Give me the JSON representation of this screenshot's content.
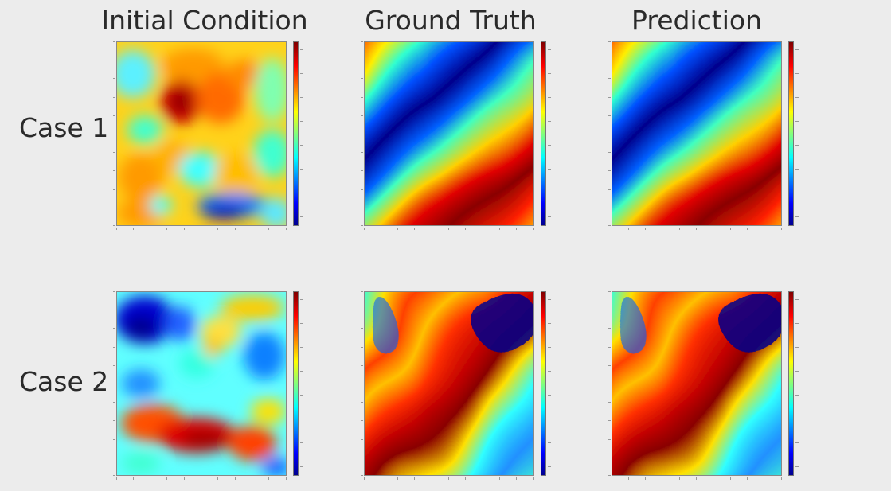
{
  "columns": [
    {
      "title": "Initial Condition"
    },
    {
      "title": "Ground Truth"
    },
    {
      "title": "Prediction"
    }
  ],
  "rows": [
    {
      "label": "Case 1"
    },
    {
      "label": "Case 2"
    }
  ],
  "colormap": {
    "name": "jet",
    "colors": [
      "#00008f",
      "#0000ff",
      "#00ffff",
      "#ffff00",
      "#ff0000",
      "#800000"
    ]
  },
  "background_color": "#ececec"
}
